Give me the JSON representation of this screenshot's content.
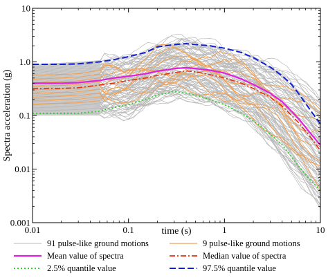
{
  "chart_data": {
    "type": "line",
    "xlabel": "time (s)",
    "ylabel": "Spectra acceleration (g)",
    "x_scale": "log",
    "y_scale": "log",
    "xlim": [
      0.01,
      10
    ],
    "ylim": [
      0.001,
      10
    ],
    "x_ticks": [
      {
        "value": 0.01,
        "label": "0.01"
      },
      {
        "value": 0.1,
        "label": "0.1"
      },
      {
        "value": 1,
        "label": "1"
      },
      {
        "value": 10,
        "label": "10"
      }
    ],
    "y_ticks": [
      {
        "value": 0.001,
        "label": "0.001"
      },
      {
        "value": 0.01,
        "label": "0.01"
      },
      {
        "value": 0.1,
        "label": "0.1"
      },
      {
        "value": 1,
        "label": "1.0"
      },
      {
        "value": 10,
        "label": "10"
      }
    ],
    "grid": false,
    "legend_position": "bottom",
    "series": [
      {
        "name": "91 pulse-like ground motions",
        "color": "#b8b8b8",
        "style": "solid",
        "count": 91,
        "x": [
          0.01,
          0.03,
          0.06,
          0.1,
          0.2,
          0.35,
          0.5,
          0.8,
          1,
          2,
          4,
          6,
          10
        ],
        "y_low": [
          0.1,
          0.1,
          0.1,
          0.1,
          0.2,
          0.22,
          0.2,
          0.16,
          0.14,
          0.07,
          0.016,
          0.006,
          0.002
        ],
        "y_high": [
          0.9,
          1.0,
          1.1,
          1.2,
          1.9,
          2.6,
          2.3,
          2.1,
          1.5,
          1.2,
          0.75,
          0.45,
          0.2
        ]
      },
      {
        "name": "9 pulse-like ground motions",
        "color": "#f0a050",
        "style": "solid",
        "count": 9,
        "x": [
          0.01,
          0.03,
          0.06,
          0.1,
          0.2,
          0.35,
          0.5,
          0.8,
          1,
          2,
          4,
          6,
          10
        ],
        "y_low": [
          0.15,
          0.16,
          0.18,
          0.2,
          0.3,
          0.35,
          0.3,
          0.22,
          0.18,
          0.09,
          0.03,
          0.012,
          0.004
        ],
        "y_high": [
          0.6,
          0.65,
          0.8,
          1.0,
          1.6,
          1.8,
          1.7,
          1.5,
          1.3,
          0.8,
          0.4,
          0.22,
          0.2
        ]
      },
      {
        "name": "Mean value of spectra",
        "color": "#e020e0",
        "style": "solid",
        "x": [
          0.01,
          0.02,
          0.03,
          0.05,
          0.07,
          0.1,
          0.15,
          0.2,
          0.3,
          0.4,
          0.5,
          0.7,
          1,
          1.5,
          2,
          3,
          4,
          5,
          6,
          8,
          10
        ],
        "y": [
          0.4,
          0.4,
          0.41,
          0.45,
          0.5,
          0.54,
          0.6,
          0.67,
          0.75,
          0.78,
          0.75,
          0.7,
          0.62,
          0.48,
          0.38,
          0.26,
          0.18,
          0.12,
          0.085,
          0.045,
          0.028
        ]
      },
      {
        "name": "Median value of  spectra",
        "color": "#e03010",
        "style": "dashdot",
        "x": [
          0.01,
          0.02,
          0.03,
          0.05,
          0.07,
          0.1,
          0.15,
          0.2,
          0.3,
          0.4,
          0.5,
          0.7,
          1,
          1.5,
          2,
          3,
          4,
          5,
          6,
          8,
          10
        ],
        "y": [
          0.32,
          0.32,
          0.33,
          0.37,
          0.4,
          0.45,
          0.5,
          0.56,
          0.63,
          0.68,
          0.65,
          0.58,
          0.5,
          0.4,
          0.32,
          0.22,
          0.15,
          0.1,
          0.072,
          0.038,
          0.022
        ]
      },
      {
        "name": "2.5% quantile value",
        "color": "#30d030",
        "style": "dotted",
        "x": [
          0.01,
          0.02,
          0.03,
          0.05,
          0.07,
          0.1,
          0.15,
          0.2,
          0.3,
          0.4,
          0.5,
          0.7,
          1,
          1.5,
          2,
          3,
          4,
          5,
          6,
          8,
          10
        ],
        "y": [
          0.11,
          0.11,
          0.11,
          0.12,
          0.14,
          0.16,
          0.2,
          0.24,
          0.28,
          0.26,
          0.24,
          0.2,
          0.16,
          0.11,
          0.08,
          0.045,
          0.028,
          0.017,
          0.011,
          0.006,
          0.004
        ]
      },
      {
        "name": "97.5% quantile value",
        "color": "#1020d0",
        "style": "dashed",
        "x": [
          0.01,
          0.02,
          0.03,
          0.05,
          0.07,
          0.1,
          0.15,
          0.2,
          0.3,
          0.4,
          0.5,
          0.7,
          1,
          1.5,
          2,
          3,
          4,
          5,
          6,
          8,
          10
        ],
        "y": [
          0.9,
          0.9,
          0.92,
          1.0,
          1.1,
          1.25,
          1.5,
          1.9,
          2.1,
          2.2,
          2.1,
          2.0,
          1.8,
          1.5,
          1.2,
          0.8,
          0.55,
          0.38,
          0.25,
          0.12,
          0.07
        ]
      }
    ]
  }
}
